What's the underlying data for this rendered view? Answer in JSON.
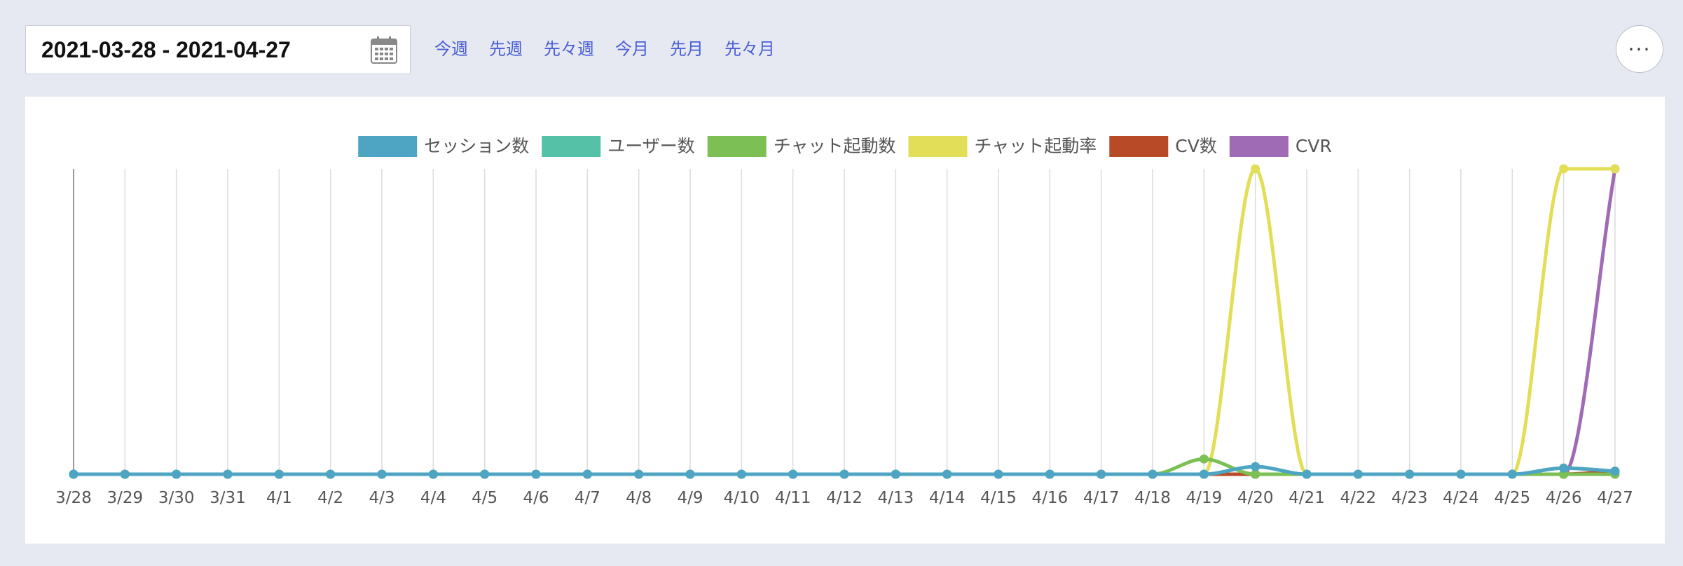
{
  "filter": {
    "date_range": "2021-03-28 - 2021-04-27",
    "quick_links": [
      "今週",
      "先週",
      "先々週",
      "今月",
      "先月",
      "先々月"
    ],
    "more_label": "···"
  },
  "chart_data": {
    "type": "line",
    "title": "",
    "xlabel": "",
    "ylabel": "",
    "grid": true,
    "legend_position": "top-center",
    "y_axis_visible": false,
    "ylim": [
      0,
      1
    ],
    "categories": [
      "3/28",
      "3/29",
      "3/30",
      "3/31",
      "4/1",
      "4/2",
      "4/3",
      "4/4",
      "4/5",
      "4/6",
      "4/7",
      "4/8",
      "4/9",
      "4/10",
      "4/11",
      "4/12",
      "4/13",
      "4/14",
      "4/15",
      "4/16",
      "4/17",
      "4/18",
      "4/19",
      "4/20",
      "4/21",
      "4/22",
      "4/23",
      "4/24",
      "4/25",
      "4/26",
      "4/27"
    ],
    "series": [
      {
        "name": "セッション数",
        "color": "#4ea5c3",
        "values": [
          0,
          0,
          0,
          0,
          0,
          0,
          0,
          0,
          0,
          0,
          0,
          0,
          0,
          0,
          0,
          0,
          0,
          0,
          0,
          0,
          0,
          0,
          0,
          0.025,
          0,
          0,
          0,
          0,
          0,
          0.02,
          0.01
        ]
      },
      {
        "name": "ユーザー数",
        "color": "#55c2a8",
        "values": [
          0,
          0,
          0,
          0,
          0,
          0,
          0,
          0,
          0,
          0,
          0,
          0,
          0,
          0,
          0,
          0,
          0,
          0,
          0,
          0,
          0,
          0,
          0,
          0.025,
          0,
          0,
          0,
          0,
          0,
          0.02,
          0.01
        ]
      },
      {
        "name": "チャット起動数",
        "color": "#7cbf54",
        "values": [
          0,
          0,
          0,
          0,
          0,
          0,
          0,
          0,
          0,
          0,
          0,
          0,
          0,
          0,
          0,
          0,
          0,
          0,
          0,
          0,
          0,
          0,
          0.05,
          0,
          0,
          0,
          0,
          0,
          0,
          0,
          0
        ]
      },
      {
        "name": "チャット起動率",
        "color": "#e2de58",
        "values": [
          0,
          0,
          0,
          0,
          0,
          0,
          0,
          0,
          0,
          0,
          0,
          0,
          0,
          0,
          0,
          0,
          0,
          0,
          0,
          0,
          0,
          0,
          0,
          1,
          0,
          0,
          0,
          0,
          0,
          1,
          1
        ]
      },
      {
        "name": "CV数",
        "color": "#b84a28",
        "values": [
          0,
          0,
          0,
          0,
          0,
          0,
          0,
          0,
          0,
          0,
          0,
          0,
          0,
          0,
          0,
          0,
          0,
          0,
          0,
          0,
          0,
          0,
          0,
          0,
          0,
          0,
          0,
          0,
          0,
          0,
          0.01
        ]
      },
      {
        "name": "CVR",
        "color": "#a06bb5",
        "values": [
          0,
          0,
          0,
          0,
          0,
          0,
          0,
          0,
          0,
          0,
          0,
          0,
          0,
          0,
          0,
          0,
          0,
          0,
          0,
          0,
          0,
          0,
          0,
          0,
          0,
          0,
          0,
          0,
          0,
          0,
          1
        ]
      }
    ]
  }
}
